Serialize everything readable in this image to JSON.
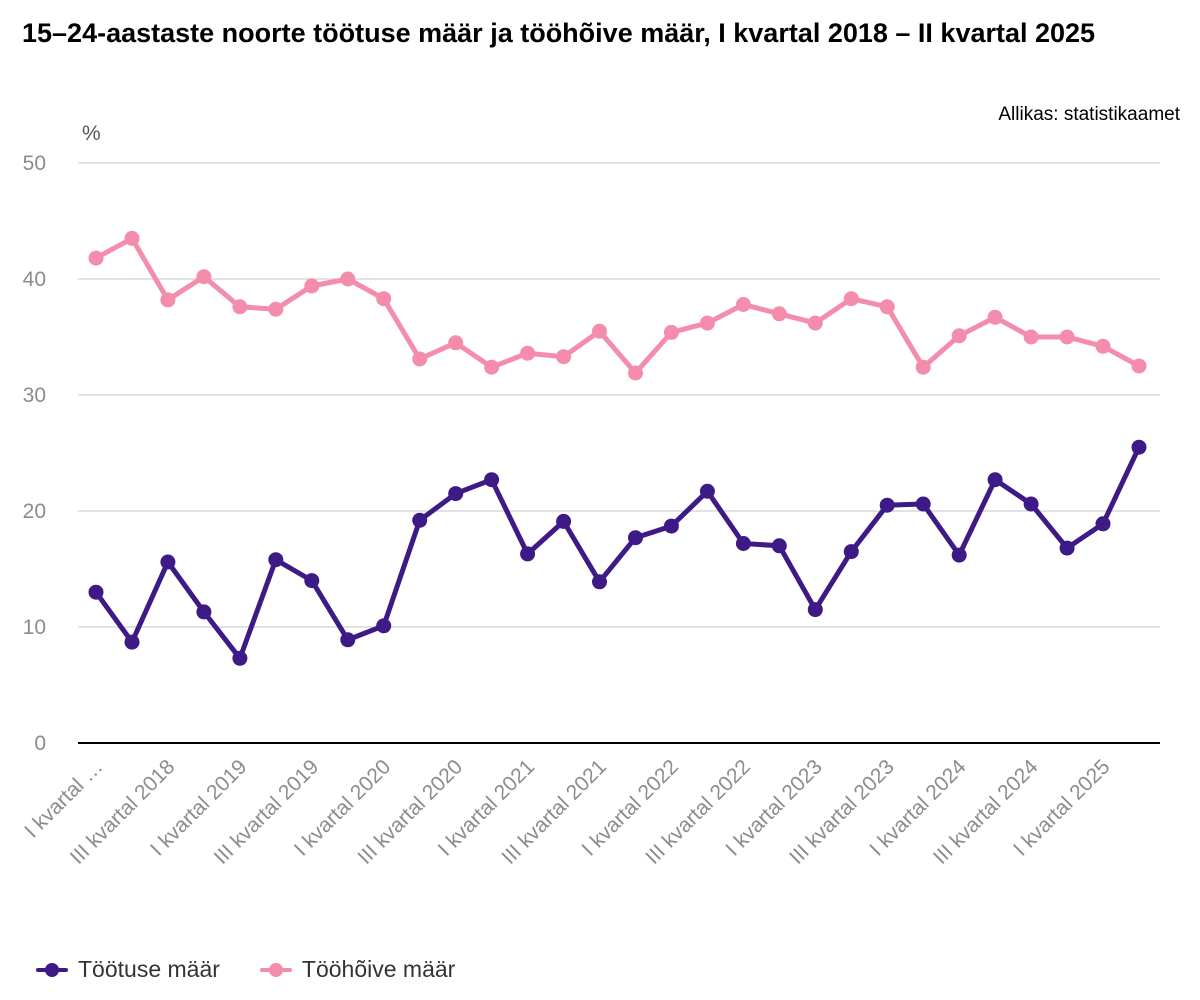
{
  "title": "15–24-aastaste noorte töötuse määr ja tööhõive määr, I kvartal 2018 – II kvartal 2025",
  "source": "Allikas: statistikaamet",
  "chart_data": {
    "type": "line",
    "ylabel": "%",
    "ylim": [
      0,
      50
    ],
    "yticks": [
      0,
      10,
      20,
      30,
      40,
      50
    ],
    "grid": true,
    "legend_position": "bottom-left",
    "x_tick_labels": [
      "I kvartal …",
      "III kvartal 2018",
      "I kvartal 2019",
      "III kvartal 2019",
      "I kvartal 2020",
      "III kvartal 2020",
      "I kvartal 2021",
      "III kvartal 2021",
      "I kvartal 2022",
      "III kvartal 2022",
      "I kvartal 2023",
      "III kvartal 2023",
      "I kvartal 2024",
      "III kvartal 2024",
      "I kvartal 2025"
    ],
    "series": [
      {
        "name": "Töötuse määr",
        "color": "#3d1a86",
        "values": [
          13.0,
          8.7,
          15.6,
          11.3,
          7.3,
          15.8,
          14.0,
          8.9,
          10.1,
          19.2,
          21.5,
          22.7,
          16.3,
          19.1,
          13.9,
          17.7,
          18.7,
          21.7,
          17.2,
          17.0,
          11.5,
          16.5,
          20.5,
          20.6,
          16.2,
          22.7,
          20.6,
          16.8,
          18.9,
          25.5
        ]
      },
      {
        "name": "Tööhõive määr",
        "color": "#f48cab",
        "values": [
          41.8,
          43.5,
          38.2,
          40.2,
          37.6,
          37.4,
          39.4,
          40.0,
          38.3,
          33.1,
          34.5,
          32.4,
          33.6,
          33.3,
          35.5,
          31.9,
          35.4,
          36.2,
          37.8,
          37.0,
          36.2,
          38.3,
          37.6,
          32.4,
          35.1,
          36.7,
          35.0,
          35.0,
          34.2,
          32.5
        ]
      }
    ]
  }
}
